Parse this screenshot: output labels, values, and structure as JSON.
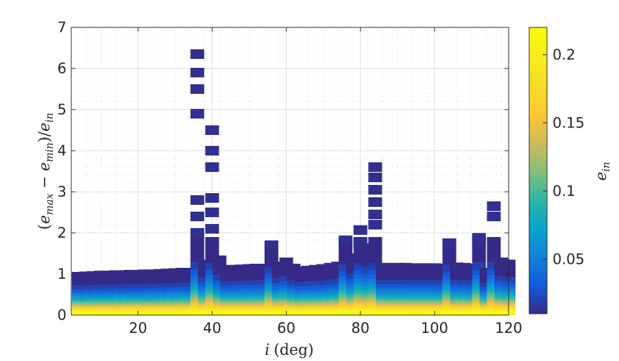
{
  "chart_data": {
    "type": "heatmap",
    "title": "",
    "xlabel": {
      "var": "i",
      "unit": "(deg)"
    },
    "ylabel": {
      "open": "(",
      "e1": "e",
      "s1": "max",
      "mid": " − ",
      "e2": "e",
      "s2": "min",
      "close": ")/",
      "e3": "e",
      "s3": "in"
    },
    "colorbar_label": {
      "var": "e",
      "sub": "in"
    },
    "xlim": [
      2,
      120
    ],
    "ylim": [
      0,
      7
    ],
    "clim": [
      0.01,
      0.22
    ],
    "colormap": "parula",
    "grid": true,
    "minor_grid": true,
    "x_ticks": [
      20,
      40,
      60,
      80,
      100,
      120
    ],
    "y_ticks": [
      0,
      1,
      2,
      3,
      4,
      5,
      6,
      7
    ],
    "colorbar_ticks": [
      0.05,
      0.1,
      0.15,
      0.2
    ],
    "x_tick_labels": [
      "20",
      "40",
      "60",
      "80",
      "100",
      "120"
    ],
    "y_tick_labels": [
      "0",
      "1",
      "2",
      "3",
      "4",
      "5",
      "6",
      "7"
    ],
    "colorbar_tick_labels": [
      "0.05",
      "0.1",
      "0.15",
      "0.2"
    ],
    "inclinations_deg": [
      4,
      6,
      8,
      10,
      12,
      14,
      16,
      18,
      20,
      22,
      24,
      26,
      28,
      30,
      32,
      34,
      36,
      38,
      40,
      42,
      44,
      46,
      48,
      50,
      52,
      54,
      56,
      58,
      60,
      62,
      64,
      66,
      68,
      70,
      72,
      74,
      76,
      78,
      80,
      82,
      84,
      86,
      88,
      90,
      92,
      94,
      96,
      98,
      100,
      102,
      104,
      106,
      108,
      110,
      112,
      114,
      116,
      118,
      120
    ],
    "max_relative_change": [
      1.05,
      1.06,
      1.07,
      1.08,
      1.08,
      1.09,
      1.09,
      1.1,
      1.1,
      1.11,
      1.11,
      1.12,
      1.13,
      1.14,
      1.15,
      1.15,
      6.35,
      1.35,
      4.5,
      1.45,
      1.22,
      1.22,
      1.23,
      1.24,
      1.25,
      1.25,
      1.75,
      1.3,
      1.4,
      1.25,
      1.18,
      1.2,
      1.22,
      1.24,
      1.27,
      1.3,
      1.85,
      1.5,
      2.1,
      1.75,
      3.65,
      1.27,
      1.27,
      1.27,
      1.27,
      1.26,
      1.26,
      1.26,
      1.26,
      1.25,
      1.8,
      1.28,
      1.27,
      1.25,
      1.9,
      1.15,
      2.7,
      1.4,
      1.35
    ],
    "outlier_points": [
      {
        "i": 36,
        "y": [
          6.35,
          5.9,
          5.5,
          4.9,
          2.8,
          2.4,
          2.0
        ]
      },
      {
        "i": 40,
        "y": [
          4.5,
          4.0,
          3.6,
          2.85,
          2.5,
          2.1
        ]
      },
      {
        "i": 56,
        "y": [
          1.7
        ]
      },
      {
        "i": 76,
        "y": [
          1.82
        ]
      },
      {
        "i": 80,
        "y": [
          2.07,
          1.75
        ]
      },
      {
        "i": 84,
        "y": [
          3.6,
          3.35,
          3.05,
          2.75,
          2.45,
          2.2
        ]
      },
      {
        "i": 104,
        "y": [
          1.75
        ]
      },
      {
        "i": 112,
        "y": [
          1.88
        ]
      },
      {
        "i": 116,
        "y": [
          2.65,
          2.4
        ]
      }
    ]
  }
}
